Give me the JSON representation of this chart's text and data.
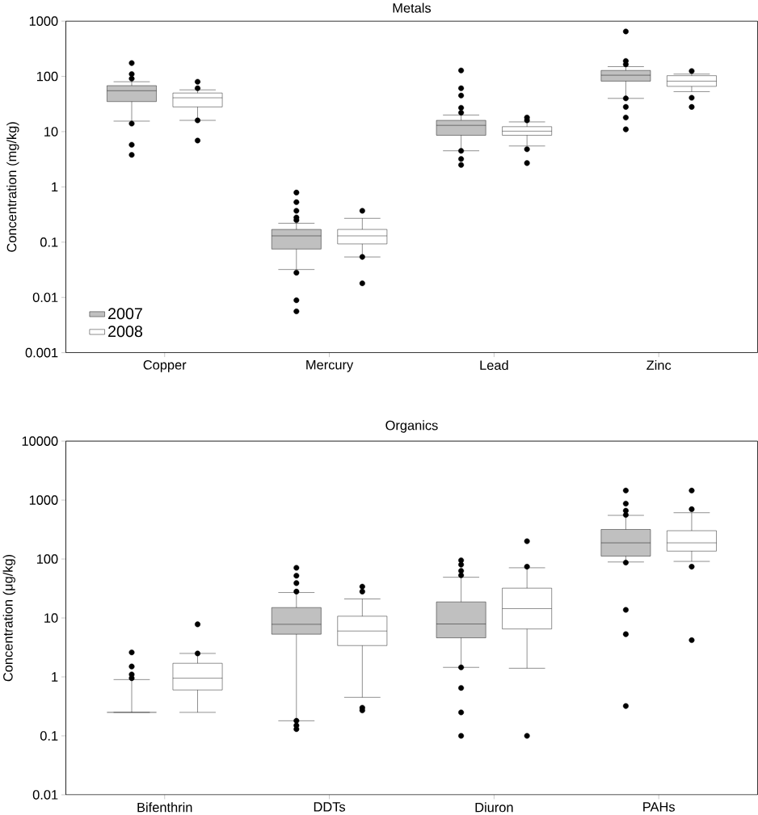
{
  "chart_data": [
    {
      "type": "box",
      "title": "Metals",
      "ylabel": "Concentration (mg/kg)",
      "categories": [
        "Copper",
        "Mercury",
        "Lead",
        "Zinc"
      ],
      "log": "y",
      "ylim": [
        0.001,
        1000
      ],
      "yticks": [
        0.001,
        0.01,
        0.1,
        1,
        10,
        100,
        1000
      ],
      "legend": "bottom left",
      "marker": "circle",
      "grid": false,
      "series": [
        {
          "name": "2007",
          "color": "#c0c0c0",
          "boxes": [
            {
              "low": 15.5,
              "q1": 35,
              "median": 55,
              "q3": 68,
              "high": 80,
              "outliers": [
                174,
                110,
                91,
                14,
                5.8,
                3.8
              ]
            },
            {
              "low": 0.032,
              "q1": 0.075,
              "median": 0.13,
              "q3": 0.17,
              "high": 0.22,
              "outliers": [
                0.79,
                0.53,
                0.37,
                0.28,
                0.25,
                0.028,
                0.0089,
                0.0056
              ]
            },
            {
              "low": 4.5,
              "q1": 8.6,
              "median": 13,
              "q3": 16,
              "high": 20,
              "outliers": [
                128,
                61,
                45,
                27,
                22,
                4.5,
                3.2,
                2.5
              ]
            },
            {
              "low": 40,
              "q1": 82,
              "median": 105,
              "q3": 128,
              "high": 150,
              "outliers": [
                650,
                190,
                165,
                40,
                28,
                18,
                11
              ]
            }
          ]
        },
        {
          "name": "2008",
          "color": "#ffffff",
          "boxes": [
            {
              "low": 16,
              "q1": 28,
              "median": 41,
              "q3": 50,
              "high": 57,
              "outliers": [
                80,
                61,
                16,
                6.9
              ]
            },
            {
              "low": 0.054,
              "q1": 0.093,
              "median": 0.13,
              "q3": 0.17,
              "high": 0.27,
              "outliers": [
                0.37,
                0.054,
                0.018
              ]
            },
            {
              "low": 5.5,
              "q1": 8.6,
              "median": 10.2,
              "q3": 12.3,
              "high": 15,
              "outliers": [
                18,
                16,
                4.8,
                2.7
              ]
            },
            {
              "low": 53,
              "q1": 66,
              "median": 82,
              "q3": 103,
              "high": 110,
              "outliers": [
                125,
                41,
                28
              ]
            }
          ]
        }
      ]
    },
    {
      "type": "box",
      "title": "Organics",
      "ylabel": "Concentration (μg/kg)",
      "categories": [
        "Bifenthrin",
        "DDTs",
        "Diuron",
        "PAHs"
      ],
      "log": "y",
      "ylim": [
        0.01,
        10000
      ],
      "yticks": [
        0.01,
        0.1,
        1,
        10,
        100,
        1000,
        10000
      ],
      "marker": "circle",
      "grid": false,
      "series": [
        {
          "color": "#c0c0c0",
          "boxes": [
            {
              "low": 0.25,
              "q1": 0.25,
              "median": 0.25,
              "q3": 0.25,
              "high": 0.9,
              "outliers": [
                2.6,
                1.5,
                1.1,
                0.95
              ]
            },
            {
              "low": 0.18,
              "q1": 5.3,
              "median": 7.8,
              "q3": 15,
              "high": 27,
              "outliers": [
                71,
                52,
                39,
                28,
                0.18,
                0.15,
                0.13
              ]
            },
            {
              "low": 1.45,
              "q1": 4.6,
              "median": 7.9,
              "q3": 18.7,
              "high": 49,
              "outliers": [
                95,
                80,
                63,
                53,
                1.45,
                0.65,
                0.25,
                0.1
              ]
            },
            {
              "low": 89,
              "q1": 112,
              "median": 188,
              "q3": 317,
              "high": 550,
              "outliers": [
                1450,
                870,
                660,
                560,
                87,
                13.7,
                5.3,
                0.32
              ]
            }
          ]
        },
        {
          "color": "#ffffff",
          "boxes": [
            {
              "low": 0.25,
              "q1": 0.6,
              "median": 0.95,
              "q3": 1.7,
              "high": 2.5,
              "outliers": [
                7.8,
                2.5
              ]
            },
            {
              "low": 0.45,
              "q1": 3.4,
              "median": 6.0,
              "q3": 10.7,
              "high": 21,
              "outliers": [
                34,
                28,
                0.3,
                0.27
              ]
            },
            {
              "low": 1.4,
              "q1": 6.5,
              "median": 14.4,
              "q3": 32,
              "high": 71,
              "outliers": [
                200,
                74,
                0.1
              ]
            },
            {
              "low": 91,
              "q1": 136,
              "median": 188,
              "q3": 302,
              "high": 610,
              "outliers": [
                1450,
                700,
                74,
                4.2
              ]
            }
          ]
        }
      ]
    }
  ]
}
